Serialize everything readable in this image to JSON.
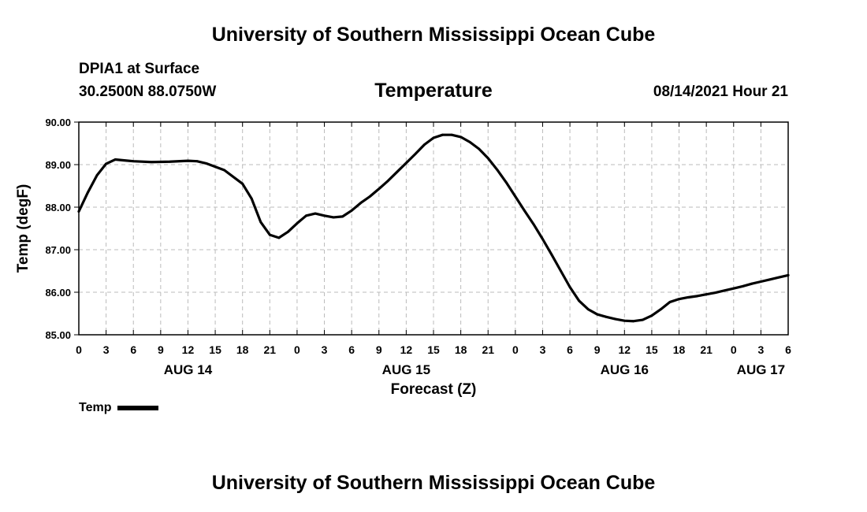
{
  "header": {
    "title": "University of Southern Mississippi Ocean Cube",
    "station": "DPIA1 at Surface",
    "coords": "30.2500N  88.0750W",
    "issued": "08/14/2021 Hour 21"
  },
  "footer": {
    "title": "University of Southern Mississippi Ocean Cube"
  },
  "legend": {
    "label": "Temp"
  },
  "colors": {
    "line": "#000000",
    "grid": "#bbbbbb",
    "axis": "#000000"
  },
  "chart_data": {
    "type": "line",
    "title": "Temperature",
    "xlabel": "Forecast (Z)",
    "ylabel": "Temp (degF)",
    "xlim": [
      0,
      78
    ],
    "ylim": [
      85.0,
      90.0
    ],
    "grid": true,
    "legend_position": "bottom-left",
    "y_ticks": [
      85.0,
      86.0,
      87.0,
      88.0,
      89.0,
      90.0
    ],
    "y_tick_labels": [
      "85.00",
      "86.00",
      "87.00",
      "88.00",
      "89.00",
      "90.00"
    ],
    "x_ticks": [
      0,
      3,
      6,
      9,
      12,
      15,
      18,
      21,
      24,
      27,
      30,
      33,
      36,
      39,
      42,
      45,
      48,
      51,
      54,
      57,
      60,
      63,
      66,
      69,
      72,
      75,
      78
    ],
    "x_tick_labels": [
      "0",
      "3",
      "6",
      "9",
      "12",
      "15",
      "18",
      "21",
      "0",
      "3",
      "6",
      "9",
      "12",
      "15",
      "18",
      "21",
      "0",
      "3",
      "6",
      "9",
      "12",
      "15",
      "18",
      "21",
      "0",
      "3",
      "6"
    ],
    "date_labels": [
      {
        "text": "AUG 14",
        "x": 12
      },
      {
        "text": "AUG 15",
        "x": 36
      },
      {
        "text": "AUG 16",
        "x": 60
      },
      {
        "text": "AUG 17",
        "x": 75
      }
    ],
    "series": [
      {
        "name": "Temp",
        "x": [
          0,
          1,
          2,
          3,
          4,
          5,
          6,
          8,
          10,
          12,
          13,
          14,
          16,
          18,
          19,
          20,
          21,
          22,
          23,
          24,
          25,
          26,
          27,
          28,
          29,
          30,
          31,
          32,
          33,
          34,
          35,
          36,
          37,
          38,
          39,
          40,
          41,
          42,
          43,
          44,
          45,
          46,
          47,
          48,
          49,
          50,
          51,
          52,
          53,
          54,
          55,
          56,
          57,
          58,
          59,
          60,
          61,
          62,
          63,
          64,
          65,
          66,
          67,
          68,
          69,
          70,
          71,
          72,
          73,
          74,
          75,
          76,
          77,
          78
        ],
        "values": [
          87.9,
          88.35,
          88.75,
          89.02,
          89.12,
          89.1,
          89.08,
          89.06,
          89.07,
          89.09,
          89.08,
          89.03,
          88.87,
          88.55,
          88.2,
          87.65,
          87.35,
          87.28,
          87.42,
          87.62,
          87.8,
          87.85,
          87.8,
          87.76,
          87.78,
          87.92,
          88.1,
          88.25,
          88.43,
          88.62,
          88.83,
          89.04,
          89.25,
          89.47,
          89.63,
          89.7,
          89.7,
          89.65,
          89.53,
          89.37,
          89.15,
          88.88,
          88.58,
          88.25,
          87.92,
          87.6,
          87.25,
          86.88,
          86.5,
          86.12,
          85.8,
          85.6,
          85.48,
          85.42,
          85.37,
          85.33,
          85.32,
          85.35,
          85.45,
          85.6,
          85.77,
          85.84,
          85.88,
          85.91,
          85.95,
          85.99,
          86.04,
          86.09,
          86.14,
          86.2,
          86.25,
          86.3,
          86.35,
          86.4
        ]
      }
    ]
  }
}
